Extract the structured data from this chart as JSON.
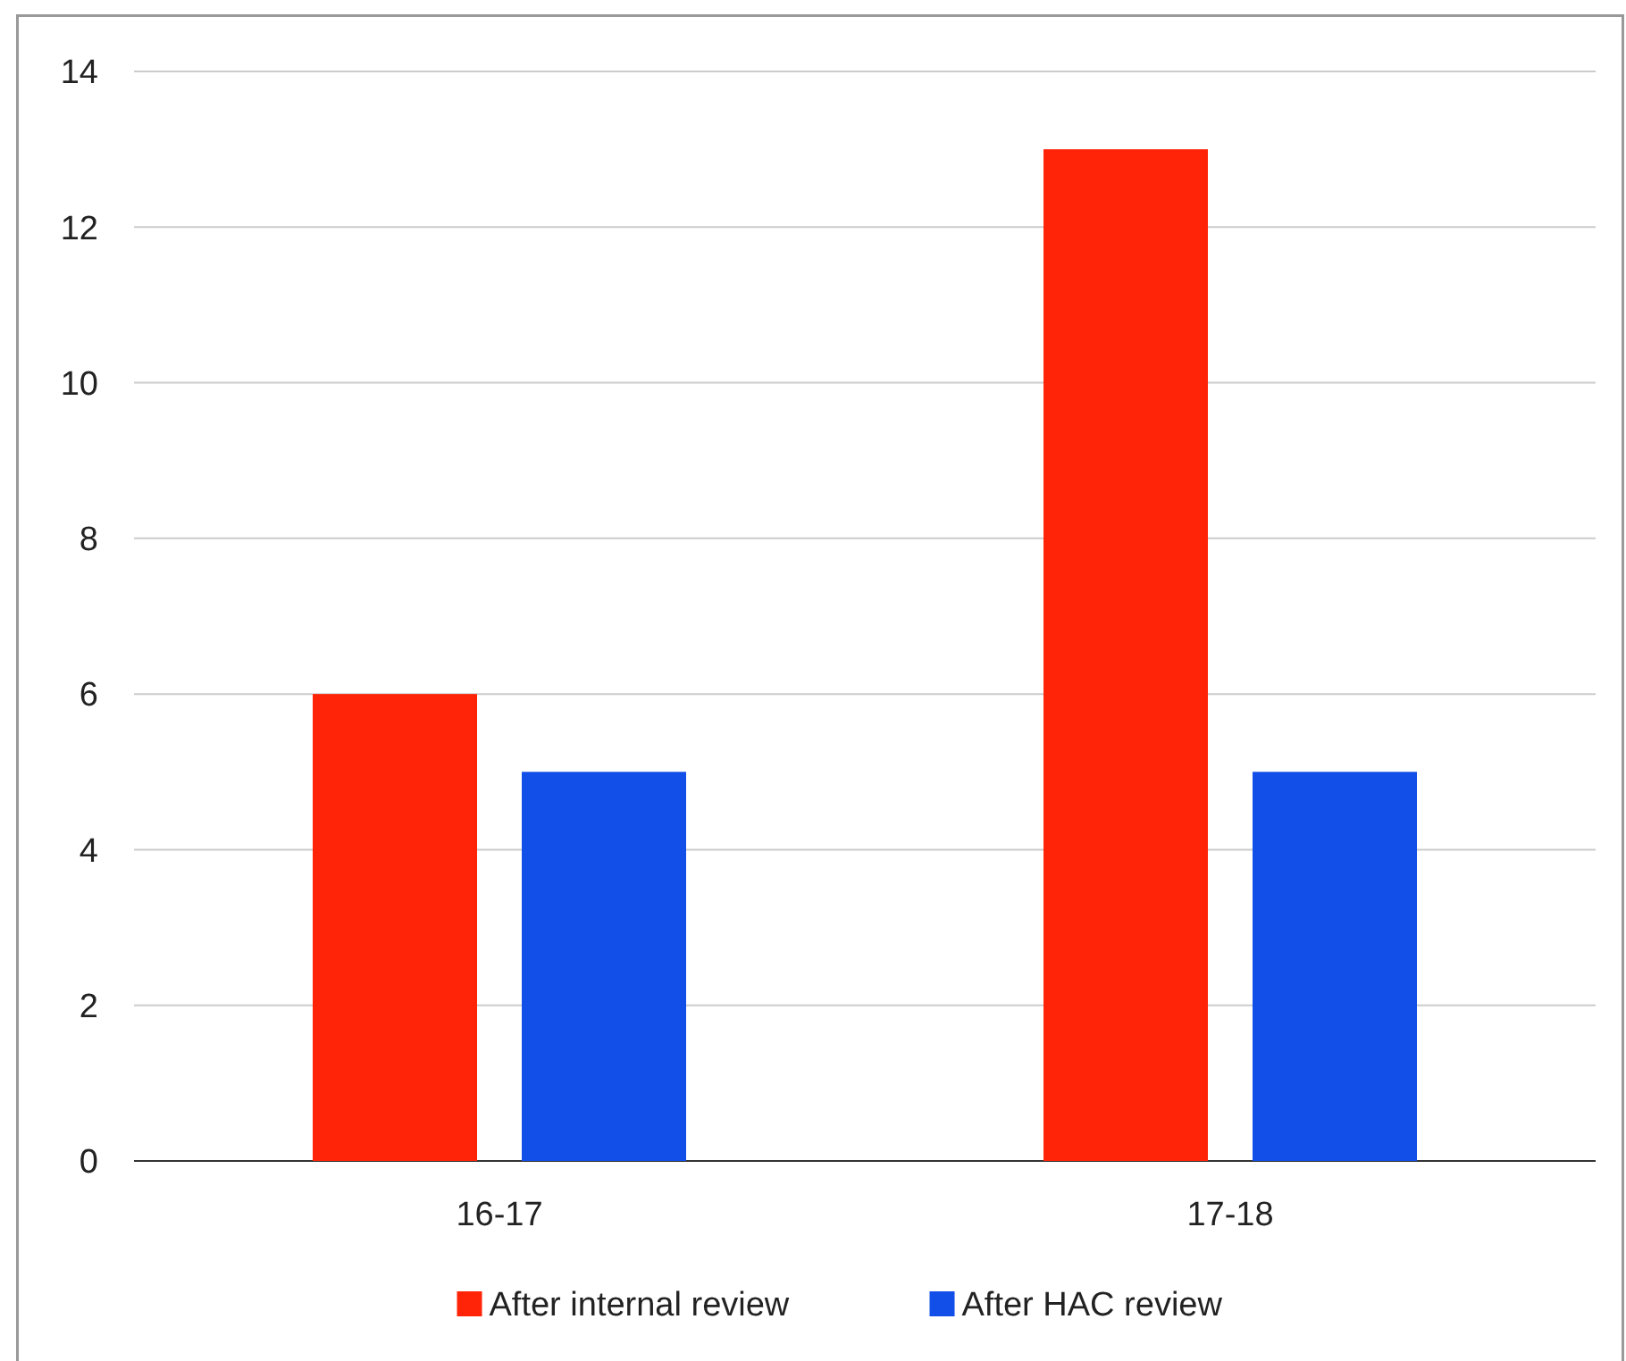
{
  "chart_data": {
    "type": "bar",
    "categories": [
      "16-17",
      "17-18"
    ],
    "series": [
      {
        "name": "After internal review",
        "color": "#ff2408",
        "values": [
          6,
          13
        ]
      },
      {
        "name": "After HAC review",
        "color": "#114fe8",
        "values": [
          5,
          5
        ]
      }
    ],
    "ylim": [
      0,
      14
    ],
    "yticks": [
      0,
      2,
      4,
      6,
      8,
      10,
      12,
      14
    ],
    "grid": "y",
    "legend": "bottom"
  }
}
